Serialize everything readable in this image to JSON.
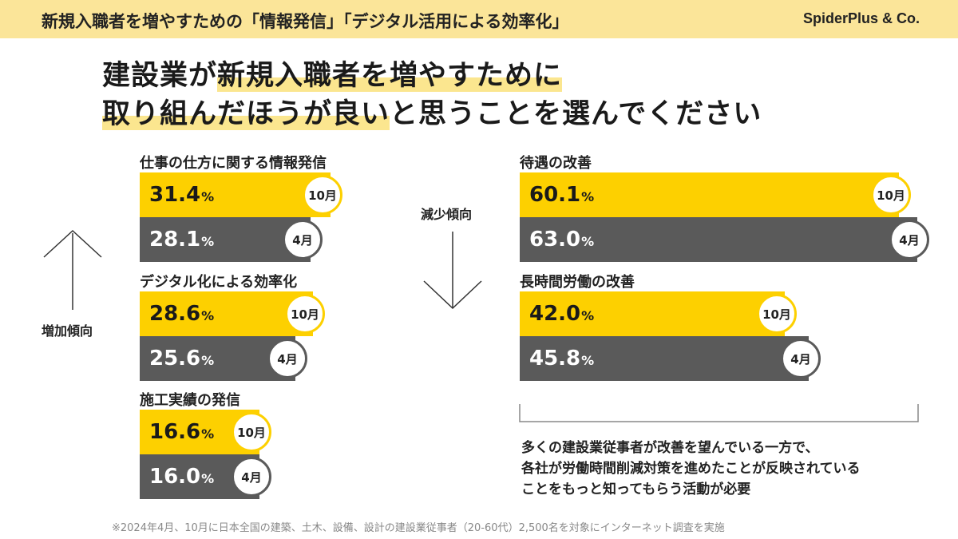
{
  "header": {
    "title": "新規入職者を増やすための「情報発信」「デジタル活用による効率化」",
    "brand": "SpiderPlus & Co."
  },
  "headline": {
    "line1_a": "建設業が",
    "line1_b": "新規入職者を増やすために",
    "line2_a": "取り組んだほうが良い",
    "line2_b": "と思うことを選んでください"
  },
  "trends": {
    "increase": "増加傾向",
    "decrease": "減少傾向"
  },
  "note": {
    "lines": [
      "多くの建設業従事者が改善を望んでいる一方で、",
      "各社が労働時間削減対策を進めたことが反映されている",
      "ことをもっと知ってもらう活動が必要"
    ]
  },
  "footnote": "※2024年4月、10月に日本全国の建築、土木、設備、設計の建設業従事者（20-60代）2,500名を対象にインターネット調査を実施",
  "chart_data": {
    "type": "bar",
    "orientation": "horizontal",
    "unit": "%",
    "series_labels": [
      "10月",
      "4月"
    ],
    "colors": {
      "oct": "#fdd000",
      "apr": "#5a5a5a"
    },
    "categories": [
      {
        "label": "仕事の仕方に関する情報発信",
        "oct": "31.4",
        "apr": "28.1",
        "group": "増加傾向"
      },
      {
        "label": "デジタル化による効率化",
        "oct": "28.6",
        "apr": "25.6",
        "group": "増加傾向"
      },
      {
        "label": "施工実績の発信",
        "oct": "16.6",
        "apr": "16.0",
        "group": "増加傾向"
      },
      {
        "label": "待遇の改善",
        "oct": "60.1",
        "apr": "63.0",
        "group": "減少傾向"
      },
      {
        "label": "長時間労働の改善",
        "oct": "42.0",
        "apr": "45.8",
        "group": "減少傾向"
      }
    ]
  }
}
